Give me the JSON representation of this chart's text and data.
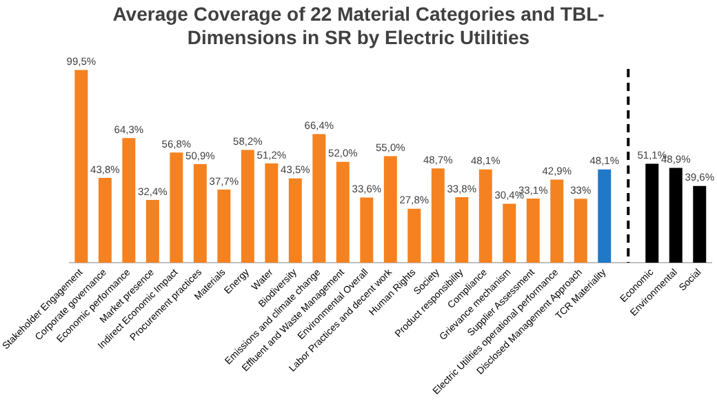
{
  "chart_data": {
    "type": "bar",
    "title": "Average Coverage of 22 Material Categories and TBL-Dimensions in SR by Electric Utilities",
    "categories": [
      "Stakeholder Engagement",
      "Corporate governance",
      "Economic performance",
      "Market presence",
      "Indirect Economic Impact",
      "Procurement practices",
      "Materials",
      "Energy",
      "Water",
      "Biodiversity",
      "Emissions and climate change",
      "Effluent and Waste Management",
      "Environmental Overall",
      "Labor Practices and decent work",
      "Human Rights",
      "Society",
      "Product responsibility",
      "Compliance",
      "Grievance mechanism",
      "Supplier Assessment",
      "Electric Utilities operational performance",
      "Disclosed Management Approach",
      "TCR Materiality",
      null,
      "Economic",
      "Environmental",
      "Social"
    ],
    "values": [
      99.5,
      43.8,
      64.3,
      32.4,
      56.8,
      50.9,
      37.7,
      58.2,
      51.2,
      43.5,
      66.4,
      52.0,
      33.6,
      55.0,
      27.8,
      48.7,
      33.8,
      48.1,
      30.4,
      33.1,
      42.9,
      33,
      48.1,
      null,
      51.1,
      48.9,
      39.6
    ],
    "value_labels": [
      "99,5%",
      "43,8%",
      "64,3%",
      "32,4%",
      "56,8%",
      "50,9%",
      "37,7%",
      "58,2%",
      "51,2%",
      "43,5%",
      "66,4%",
      "52,0%",
      "33,6%",
      "55,0%",
      "27,8%",
      "48,7%",
      "33,8%",
      "48,1%",
      "30,4%",
      "33,1%",
      "42,9%",
      "33%",
      "48,1%",
      null,
      "51,1%",
      "48,9%",
      "39,6%"
    ],
    "colors": [
      "#f58220",
      "#f58220",
      "#f58220",
      "#f58220",
      "#f58220",
      "#f58220",
      "#f58220",
      "#f58220",
      "#f58220",
      "#f58220",
      "#f58220",
      "#f58220",
      "#f58220",
      "#f58220",
      "#f58220",
      "#f58220",
      "#f58220",
      "#f58220",
      "#f58220",
      "#f58220",
      "#f58220",
      "#f58220",
      "#1f78c8",
      "#ffffff",
      "#000000",
      "#000000",
      "#000000"
    ],
    "legend": false
  }
}
